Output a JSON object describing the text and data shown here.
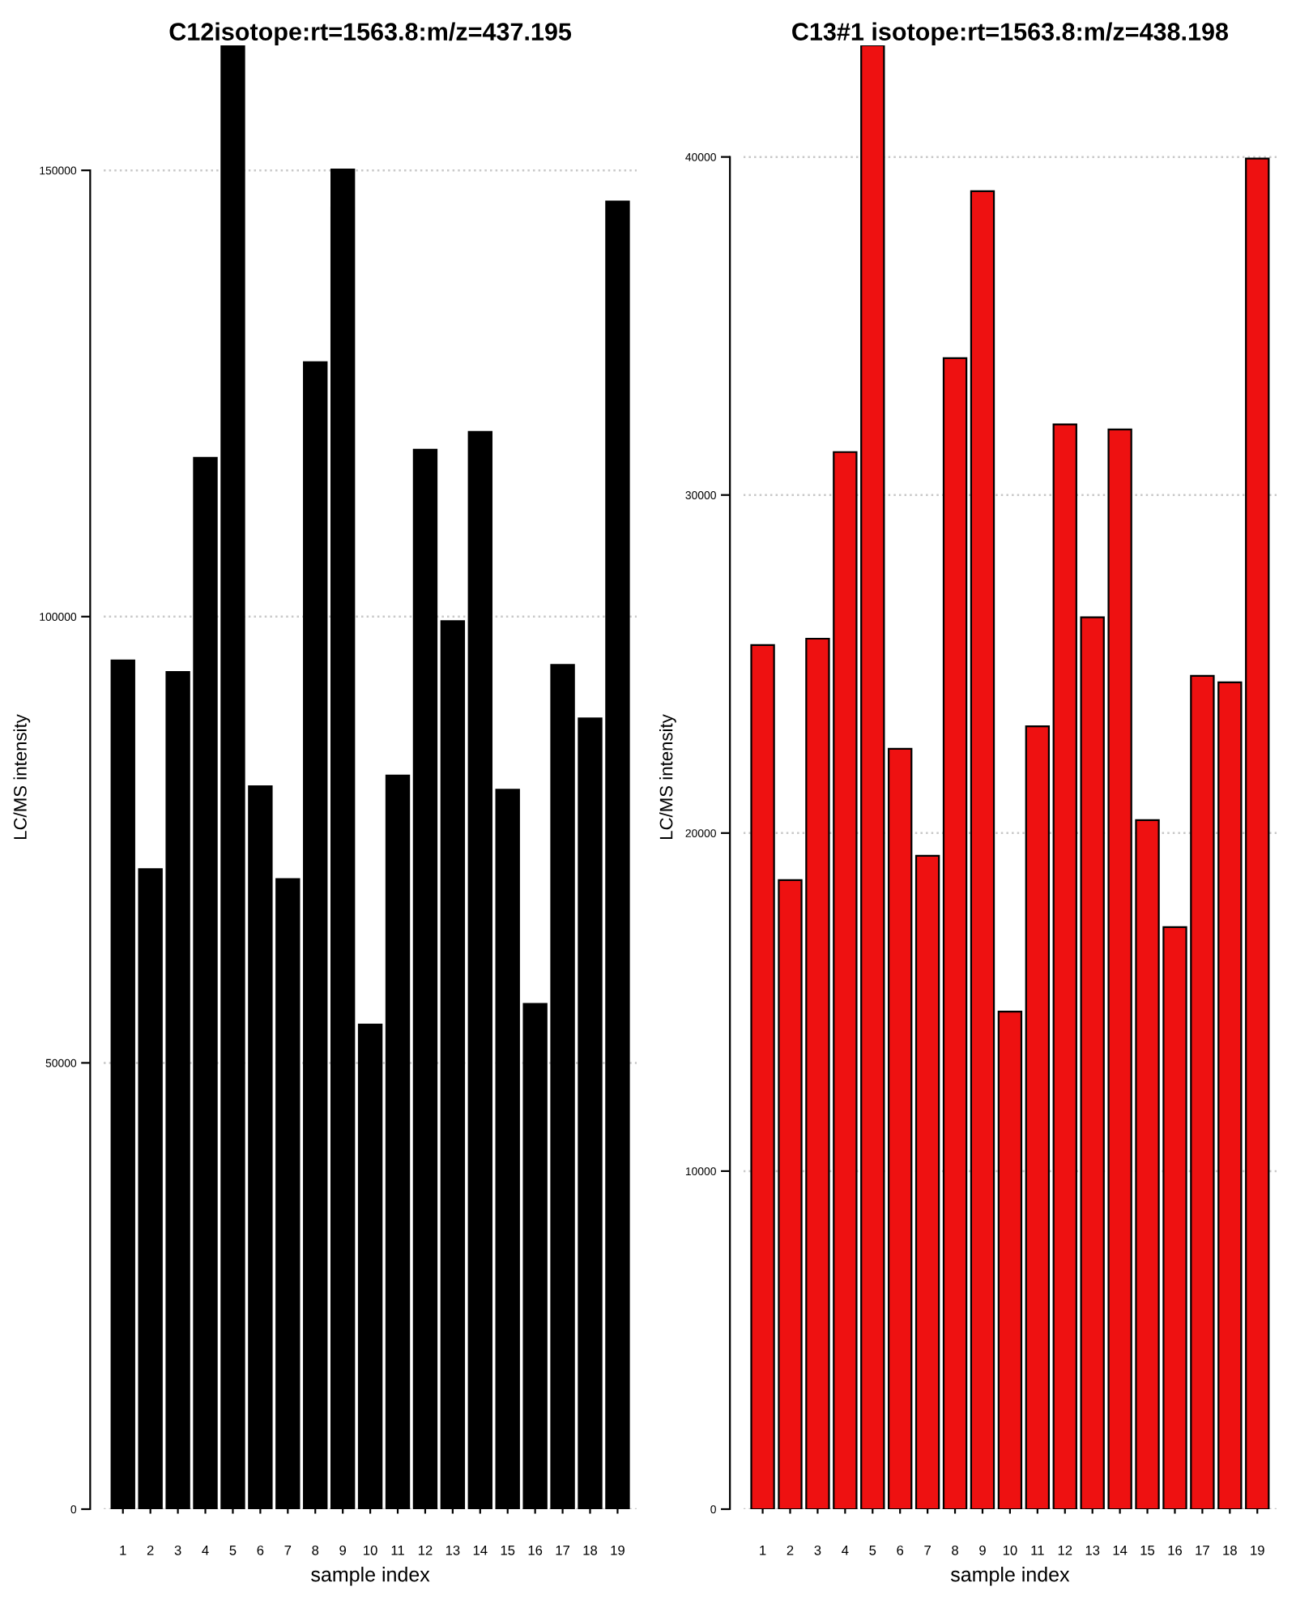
{
  "chart_data": [
    {
      "type": "bar",
      "title": "C12isotope:rt=1563.8:m/z=437.195",
      "xlabel": "sample index",
      "ylabel": "LC/MS intensity",
      "categories": [
        "1",
        "2",
        "3",
        "4",
        "5",
        "6",
        "7",
        "8",
        "9",
        "10",
        "11",
        "12",
        "13",
        "14",
        "15",
        "16",
        "17",
        "18",
        "19"
      ],
      "values": [
        95100,
        71700,
        93800,
        117800,
        164000,
        81000,
        70600,
        128500,
        150100,
        54300,
        82200,
        118700,
        99500,
        120700,
        80600,
        56600,
        94600,
        88600,
        146500
      ],
      "color": "#000000",
      "ylim": [
        0,
        164000
      ],
      "yticks": [
        0,
        50000,
        100000,
        150000
      ],
      "grid": "y"
    },
    {
      "type": "bar",
      "title": "C13#1 isotope:rt=1563.8:m/z=438.198",
      "xlabel": "sample index",
      "ylabel": "LC/MS intensity",
      "categories": [
        "1",
        "2",
        "3",
        "4",
        "5",
        "6",
        "7",
        "8",
        "9",
        "10",
        "11",
        "12",
        "13",
        "14",
        "15",
        "16",
        "17",
        "18",
        "19"
      ],
      "values": [
        25560,
        18610,
        25750,
        31270,
        43300,
        22490,
        19330,
        34050,
        38990,
        14720,
        23160,
        32090,
        26380,
        31940,
        20380,
        17220,
        24650,
        24460,
        39950
      ],
      "color": "#ee1111",
      "ylim": [
        0,
        43300
      ],
      "yticks": [
        0,
        10000,
        20000,
        30000,
        40000
      ],
      "grid": "y"
    }
  ]
}
